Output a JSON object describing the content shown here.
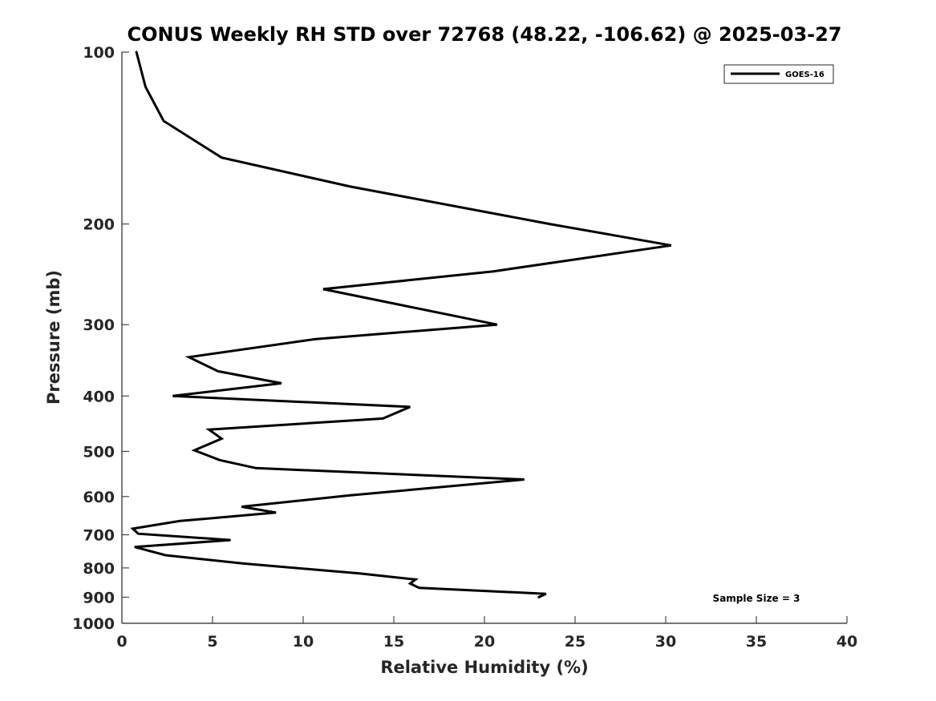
{
  "chart_data": {
    "type": "line",
    "title": "CONUS Weekly RH STD over 72768 (48.22, -106.62) @ 2025-03-27",
    "xlabel": "Relative Humidity (%)",
    "ylabel": "Pressure (mb)",
    "xlim": [
      0,
      40
    ],
    "ylim": [
      100,
      1000
    ],
    "y_scale": "log",
    "y_reversed": true,
    "x_ticks": [
      "0",
      "5",
      "10",
      "15",
      "20",
      "25",
      "30",
      "35",
      "40"
    ],
    "y_ticks": [
      "100",
      "200",
      "300",
      "400",
      "500",
      "600",
      "700",
      "800",
      "900",
      "1000"
    ],
    "grid": false,
    "legend_position": "top-right",
    "annotation": "Sample Size = 3",
    "series": [
      {
        "name": "GOES-16",
        "color": "#000000",
        "x": [
          0.8,
          1.3,
          2.3,
          5.5,
          12.6,
          23.6,
          30.3,
          20.5,
          11.1,
          20.7,
          10.7,
          3.7,
          5.3,
          8.8,
          2.8,
          15.9,
          14.4,
          4.8,
          5.5,
          4.0,
          5.4,
          7.4,
          22.2,
          12.6,
          6.6,
          8.5,
          3.2,
          0.6,
          0.9,
          6.0,
          0.7,
          2.4,
          6.7,
          13.1,
          16.2,
          15.9,
          16.4,
          23.4,
          23.0
        ],
        "y": [
          100,
          115,
          132,
          153,
          172,
          200,
          218,
          242,
          260,
          300,
          318,
          342,
          362,
          380,
          400,
          418,
          438,
          458,
          475,
          498,
          518,
          535,
          560,
          597,
          625,
          640,
          662,
          683,
          697,
          715,
          735,
          760,
          786,
          818,
          838,
          852,
          867,
          888,
          900
        ]
      }
    ]
  }
}
